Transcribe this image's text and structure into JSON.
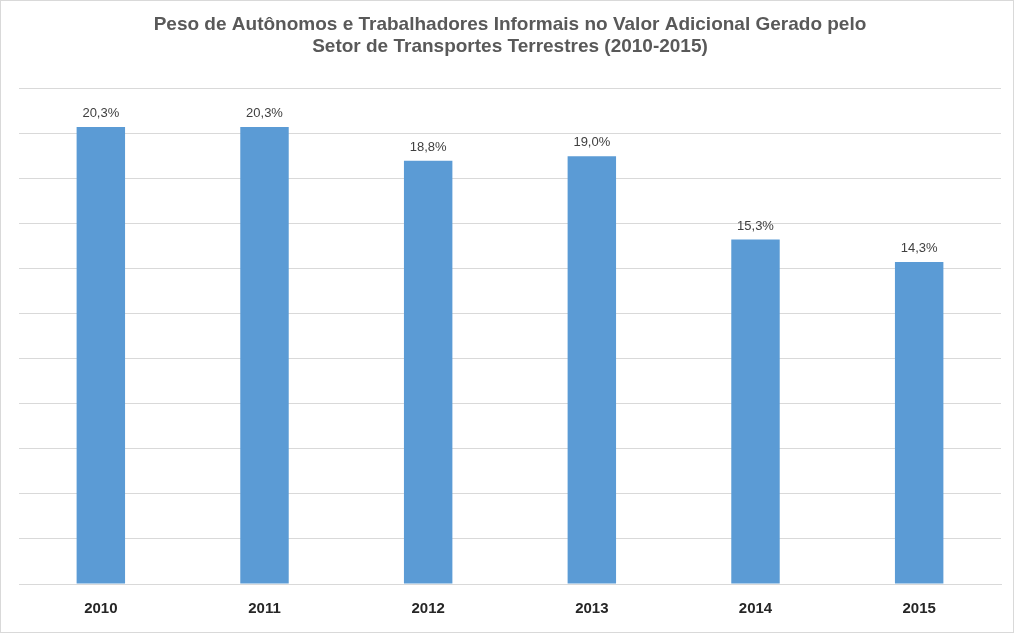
{
  "chart_data": {
    "type": "bar",
    "title": [
      "Peso de Autônomos e Trabalhadores Informais no Valor Adicional Gerado pelo",
      "Setor de Transportes Terrestres (2010-2015)"
    ],
    "categories": [
      "2010",
      "2011",
      "2012",
      "2013",
      "2014",
      "2015"
    ],
    "values": [
      20.3,
      20.3,
      18.8,
      19.0,
      15.3,
      14.3
    ],
    "value_labels": [
      "20,3%",
      "20,3%",
      "18,8%",
      "19,0%",
      "15,3%",
      "14,3%"
    ],
    "data_labels": true,
    "color": "#5b9bd5",
    "ylim": [
      0,
      22
    ],
    "yticks": [
      0,
      2,
      4,
      6,
      8,
      10,
      12,
      14,
      16,
      18,
      20,
      22
    ],
    "grid": true,
    "tick_labels": "x"
  }
}
